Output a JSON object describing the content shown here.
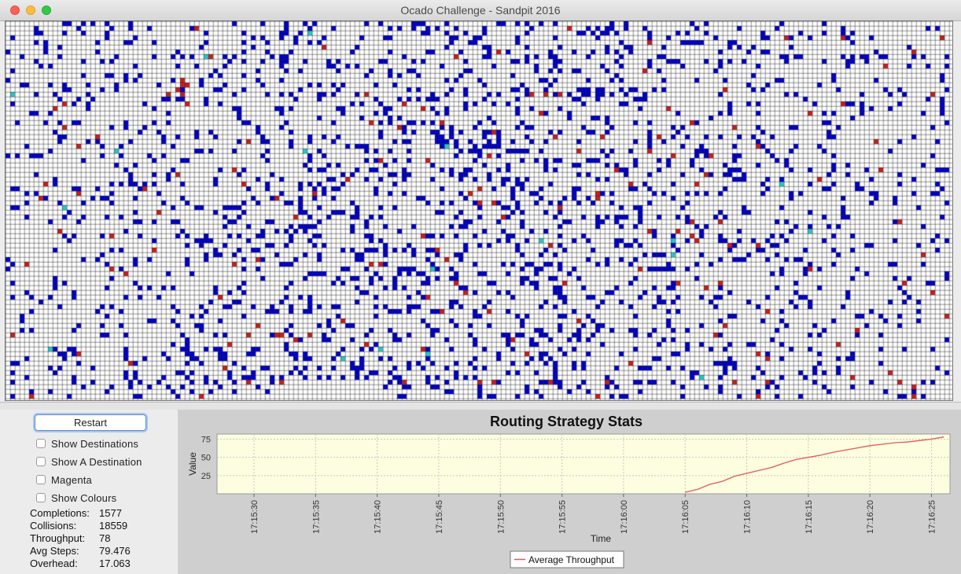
{
  "window": {
    "title": "Ocado Challenge - Sandpit 2016"
  },
  "controls": {
    "restart_label": "Restart",
    "checkboxes": [
      {
        "label": "Show Destinations",
        "checked": false
      },
      {
        "label": "Show A Destination",
        "checked": false
      },
      {
        "label": "Magenta",
        "checked": false
      },
      {
        "label": "Show Colours",
        "checked": false
      }
    ]
  },
  "stats": {
    "completions": {
      "label": "Completions:",
      "value": "1577"
    },
    "collisions": {
      "label": "Collisions:",
      "value": "18559"
    },
    "throughput": {
      "label": "Throughput:",
      "value": "78"
    },
    "avg_steps": {
      "label": "Avg Steps:",
      "value": "79.476"
    },
    "overhead": {
      "label": "Overhead:",
      "value": "17.063"
    }
  },
  "grid": {
    "empty_color": "#ffffff",
    "line_color": "#2b2b2b",
    "robot_color": "#0000c8",
    "collision_color": "#c81e1e",
    "destination_color": "#23c8c8",
    "blue_density": 0.12,
    "red_density": 0.008,
    "cyan_density": 0.001
  },
  "chart_data": {
    "type": "line",
    "title": "Routing Strategy Stats",
    "xlabel": "Time",
    "ylabel": "Value",
    "x_ticks": [
      "17:15:30",
      "17:15:35",
      "17:15:40",
      "17:15:45",
      "17:15:50",
      "17:15:55",
      "17:16:00",
      "17:16:05",
      "17:16:10",
      "17:16:15",
      "17:16:20",
      "17:16:25"
    ],
    "y_ticks": [
      25,
      50,
      75
    ],
    "ylim": [
      0,
      82
    ],
    "series": [
      {
        "name": "Average Throughput",
        "color": "#e05a5a",
        "points": [
          [
            "17:16:05",
            2
          ],
          [
            "17:16:06",
            6
          ],
          [
            "17:16:07",
            13
          ],
          [
            "17:16:08",
            17
          ],
          [
            "17:16:09",
            24
          ],
          [
            "17:16:10",
            28
          ],
          [
            "17:16:11",
            32
          ],
          [
            "17:16:12",
            36
          ],
          [
            "17:16:13",
            42
          ],
          [
            "17:16:14",
            47
          ],
          [
            "17:16:15",
            50
          ],
          [
            "17:16:16",
            53
          ],
          [
            "17:16:17",
            57
          ],
          [
            "17:16:18",
            60
          ],
          [
            "17:16:19",
            63
          ],
          [
            "17:16:20",
            66
          ],
          [
            "17:16:21",
            68
          ],
          [
            "17:16:22",
            70
          ],
          [
            "17:16:23",
            71
          ],
          [
            "17:16:24",
            73
          ],
          [
            "17:16:25",
            75
          ],
          [
            "17:16:26",
            78
          ]
        ]
      }
    ],
    "grid": true,
    "legend": "bottom-center",
    "background": "#fdfde0"
  }
}
